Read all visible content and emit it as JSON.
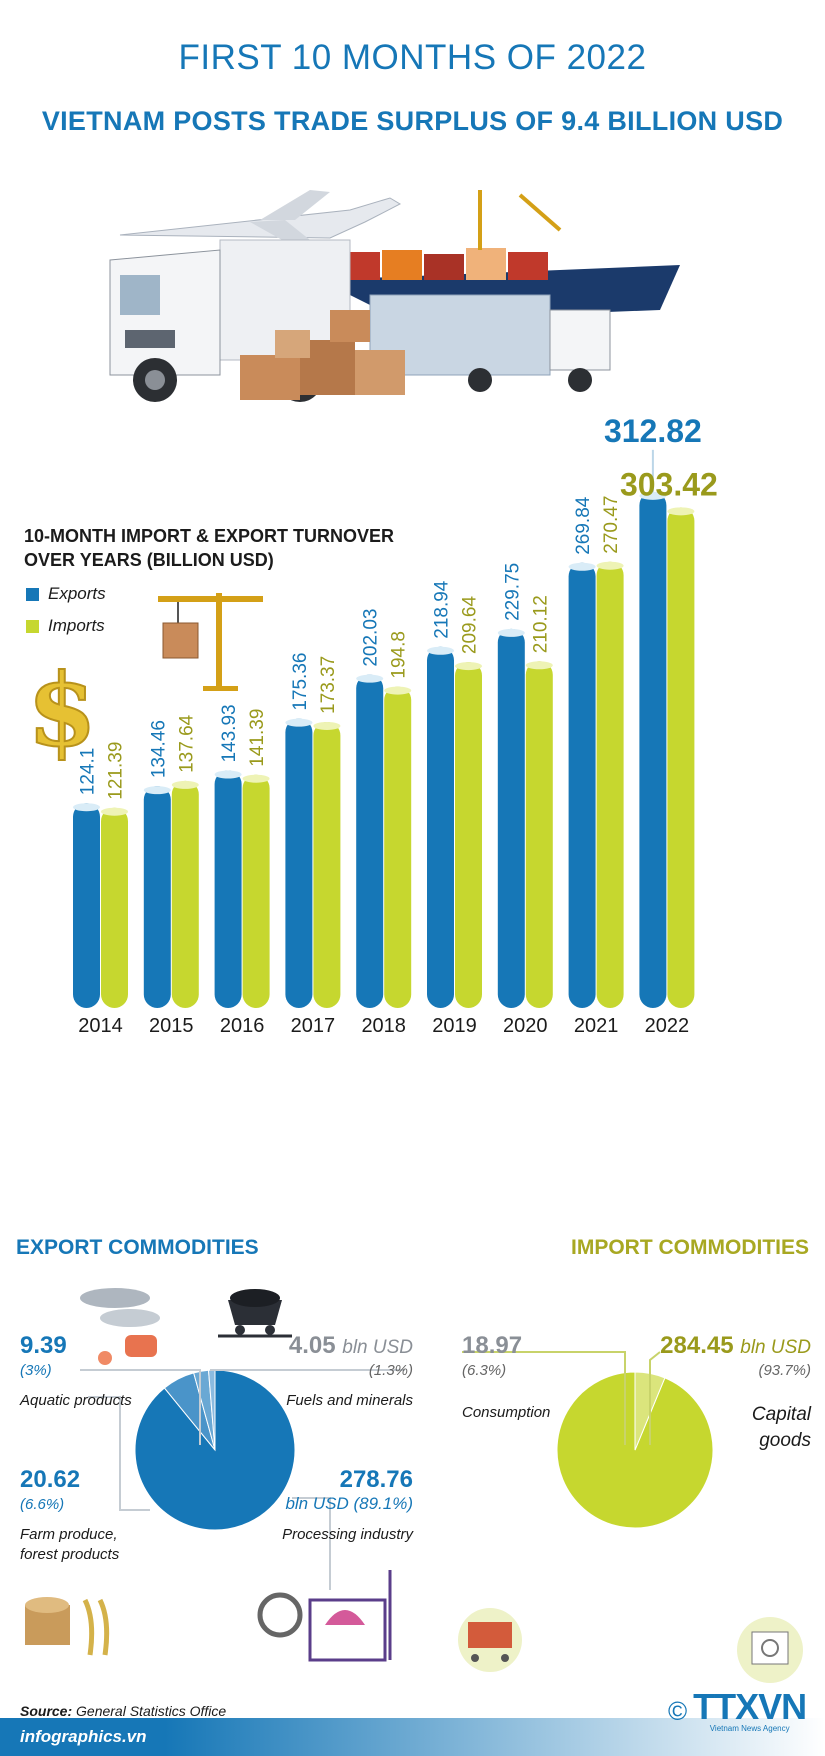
{
  "header": {
    "title": "FIRST 10 MONTHS OF 2022",
    "subtitle": "VIETNAM POSTS TRADE SURPLUS OF 9.4 BILLION USD"
  },
  "colors": {
    "exports": "#1677b7",
    "imports": "#c6d72f",
    "imports_text": "#9a9a1c",
    "blue_text": "#1677b7"
  },
  "chart_data": [
    {
      "type": "bar",
      "title": "10-MONTH IMPORT & EXPORT TURNOVER OVER YEARS (BILLION USD)",
      "categories": [
        "2014",
        "2015",
        "2016",
        "2017",
        "2018",
        "2019",
        "2020",
        "2021",
        "2022"
      ],
      "series": [
        {
          "name": "Exports",
          "values": [
            124.1,
            134.46,
            143.93,
            175.36,
            202.03,
            218.94,
            229.75,
            269.84,
            312.82
          ]
        },
        {
          "name": "Imports",
          "values": [
            121.39,
            137.64,
            141.39,
            173.37,
            194.8,
            209.64,
            210.12,
            270.47,
            303.42
          ]
        }
      ],
      "labels": {
        "exports": [
          "124.1",
          "134.46",
          "143.93",
          "175.36",
          "202.03",
          "218.94",
          "229.75",
          "269.84",
          "312.82"
        ],
        "imports": [
          "121.39",
          "137.64",
          "141.39",
          "173.37",
          "194.8",
          "209.64",
          "210.12",
          "270.47",
          "303.42"
        ]
      },
      "legend_placement": "top-left",
      "grid": false
    },
    {
      "type": "pie",
      "title": "EXPORT COMMODITIES",
      "slices": [
        {
          "name": "Processing industry",
          "value": 278.76,
          "percent": 89.1
        },
        {
          "name": "Farm produce, forest products",
          "value": 20.62,
          "percent": 6.6
        },
        {
          "name": "Aquatic products",
          "value": 9.39,
          "percent": 3
        },
        {
          "name": "Fuels and minerals",
          "value": 4.05,
          "percent": 1.3
        }
      ]
    },
    {
      "type": "pie",
      "title": "IMPORT COMMODITIES",
      "slices": [
        {
          "name": "Capital goods",
          "value": 284.45,
          "percent": 93.7
        },
        {
          "name": "Consumption",
          "value": 18.97,
          "percent": 6.3
        }
      ]
    }
  ],
  "chart": {
    "title_line1": "10-MONTH IMPORT & EXPORT TURNOVER",
    "title_line2": "OVER YEARS (BILLION USD)",
    "legend_exports": "Exports",
    "legend_imports": "Imports"
  },
  "exports": {
    "title": "EXPORT COMMODITIES",
    "aquatic": {
      "value": "9.39",
      "pct": "(3%)",
      "label": "Aquatic products"
    },
    "fuels": {
      "value": "4.05",
      "unit": "bln USD",
      "pct": "(1.3%)",
      "label": "Fuels and minerals"
    },
    "farm": {
      "value": "20.62",
      "pct": "(6.6%)",
      "label1": "Farm produce,",
      "label2": "forest products"
    },
    "processing": {
      "value": "278.76",
      "unit_pct": "bln USD (89.1%)",
      "label": "Processing industry"
    }
  },
  "imports": {
    "title": "IMPORT COMMODITIES",
    "consumption": {
      "value": "18.97",
      "pct": "(6.3%)",
      "label": "Consumption"
    },
    "capital": {
      "value": "284.45",
      "unit": "bln USD",
      "pct": "(93.7%)",
      "label1": "Capital",
      "label2": "goods"
    }
  },
  "footer": {
    "source_label": "Source:",
    "source": "General Statistics Office",
    "site": "infographics.vn",
    "logo": "TTXVN",
    "logo_sub": "Vietnam News Agency",
    "copyright": "©"
  }
}
